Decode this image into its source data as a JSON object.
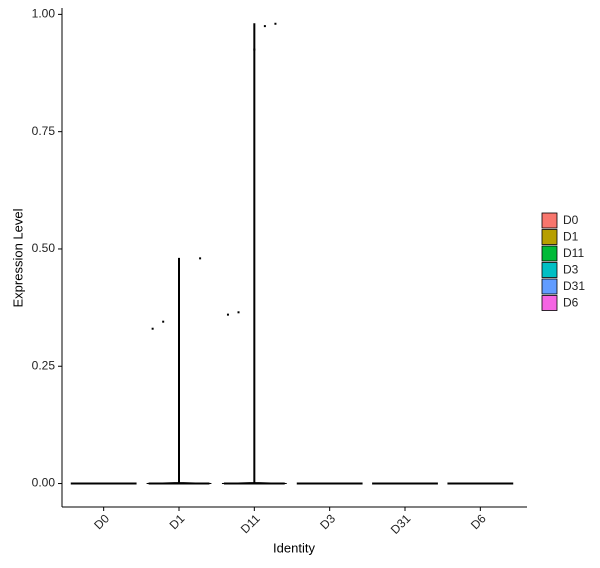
{
  "chart_data": {
    "type": "violin",
    "x_label": "Identity",
    "y_label": "Expression Level",
    "categories": [
      "D0",
      "D1",
      "D11",
      "D3",
      "D31",
      "D6"
    ],
    "series": [
      {
        "name": "D0",
        "color": "#F8766D",
        "values": [
          0
        ]
      },
      {
        "name": "D1",
        "color": "#B79F00",
        "values": [
          0,
          0.48,
          0.33,
          0.345
        ]
      },
      {
        "name": "D11",
        "color": "#00BA38",
        "values": [
          0,
          0.925,
          0.975,
          0.98,
          0.36,
          0.365
        ]
      },
      {
        "name": "D3",
        "color": "#00BFC4",
        "values": [
          0
        ]
      },
      {
        "name": "D31",
        "color": "#619CFF",
        "values": [
          0
        ]
      },
      {
        "name": "D6",
        "color": "#F564E3",
        "values": [
          0
        ]
      }
    ],
    "ylim": [
      -0.05,
      1.02
    ],
    "yticks": [
      {
        "value": 0,
        "label": "0.00"
      },
      {
        "value": 0.25,
        "label": "0.25"
      },
      {
        "value": 0.5,
        "label": "0.50"
      },
      {
        "value": 0.75,
        "label": "0.75"
      },
      {
        "value": 1,
        "label": "1.00"
      }
    ],
    "grid": false
  }
}
